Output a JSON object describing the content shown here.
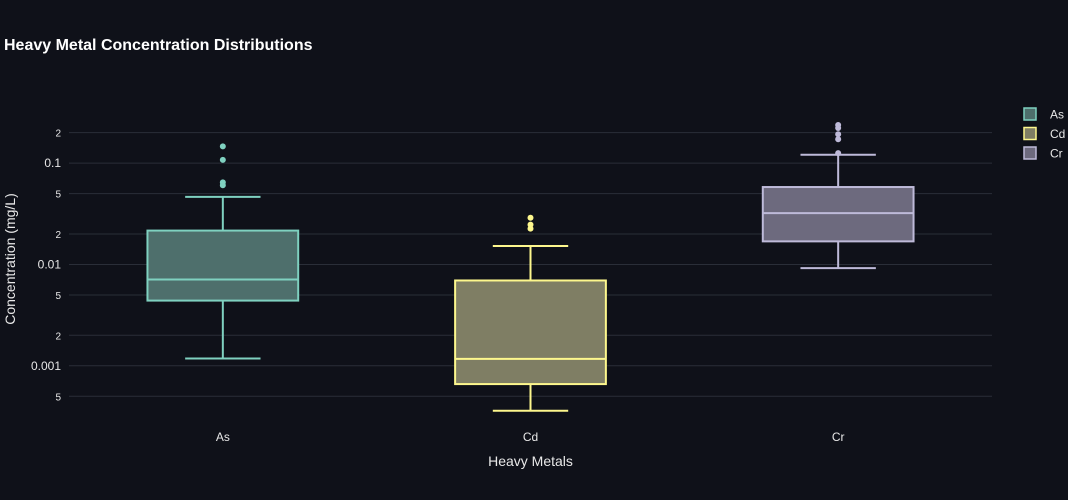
{
  "chart_data": {
    "type": "box",
    "title": "Heavy Metal Concentration Distributions",
    "xlabel": "Heavy Metals",
    "ylabel": "Concentration (mg/L)",
    "y_scale": "log",
    "ylim": [
      0.00035,
      0.35
    ],
    "y_major_ticks": [
      0.001,
      0.01,
      0.1
    ],
    "y_major_tick_labels": [
      "0.001",
      "0.01",
      "0.1"
    ],
    "y_minor_ticks": [
      0.0005,
      0.002,
      0.005,
      0.02,
      0.05,
      0.2
    ],
    "y_minor_tick_labels": [
      "5",
      "2",
      "5",
      "2",
      "5",
      "2"
    ],
    "grid": true,
    "legend_position": "top-right",
    "categories": [
      "As",
      "Cd",
      "Cr"
    ],
    "series": [
      {
        "name": "As",
        "color": "#7fd1c0",
        "fill": "#4e6f6c",
        "lowerfence": 0.00118,
        "q1": 0.0044,
        "median": 0.0071,
        "q3": 0.0216,
        "upperfence": 0.0465,
        "outliers": [
          0.0605,
          0.0645,
          0.1078,
          0.1465
        ]
      },
      {
        "name": "Cd",
        "color": "#fdf78d",
        "fill": "#7f7e64",
        "lowerfence": 0.00036,
        "q1": 0.00066,
        "median": 0.00117,
        "q3": 0.00695,
        "upperfence": 0.0152,
        "outliers": [
          0.0226,
          0.0247,
          0.0289
        ]
      },
      {
        "name": "Cr",
        "color": "#bebad9",
        "fill": "#6d6a7e",
        "lowerfence": 0.0092,
        "q1": 0.0169,
        "median": 0.0321,
        "q3": 0.0581,
        "upperfence": 0.121,
        "outliers": [
          0.1255,
          0.172,
          0.193,
          0.222,
          0.238
        ]
      }
    ]
  }
}
